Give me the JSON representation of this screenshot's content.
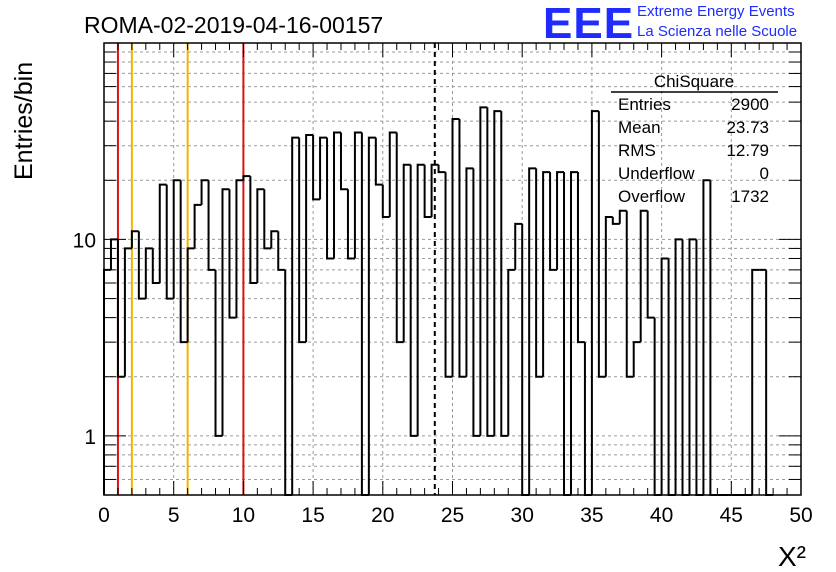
{
  "header": {
    "run_title": "ROMA-02-2019-04-16-00157",
    "logo_text": "EEE",
    "logo_line1": "Extreme Energy Events",
    "logo_line2": "La Scienza nelle Scuole"
  },
  "stats_box": {
    "title": "ChiSquare",
    "rows": [
      {
        "label": "Entries",
        "value": "2900"
      },
      {
        "label": "Mean",
        "value": "23.73"
      },
      {
        "label": "RMS",
        "value": "12.79"
      },
      {
        "label": "Underflow",
        "value": "0"
      },
      {
        "label": "Overflow",
        "value": "1732"
      }
    ]
  },
  "colors": {
    "histogram": "#000000",
    "red_line": "#dd1111",
    "yellow_line": "#f0b400",
    "grid": "#9a9a9a",
    "logo": "#1f2bff"
  },
  "chart_data": {
    "type": "histogram",
    "xlabel": "X²",
    "ylabel": "Entries/bin",
    "xlim": [
      0,
      50
    ],
    "ylim": [
      0.5,
      100
    ],
    "y_scale": "log",
    "grid": true,
    "bin_width": 0.5,
    "x_ticks": [
      "0",
      "5",
      "10",
      "15",
      "20",
      "25",
      "30",
      "35",
      "40",
      "45",
      "50"
    ],
    "y_ticks": [
      "1",
      "10"
    ],
    "bin_counts": [
      7,
      10,
      2,
      9,
      11,
      5,
      9,
      6,
      19,
      5,
      20,
      3,
      9,
      15,
      20,
      7,
      1,
      18,
      4,
      20,
      21,
      6,
      18,
      9,
      11,
      7,
      0,
      33,
      3,
      34,
      16,
      33,
      8,
      35,
      18,
      8,
      35,
      0,
      33,
      19,
      13,
      35,
      3,
      24,
      1,
      24,
      13,
      24,
      22,
      2,
      41,
      2,
      23,
      1,
      47,
      1,
      45,
      1,
      7,
      12,
      0,
      23,
      2,
      22,
      7,
      22,
      0,
      22,
      3,
      0,
      45,
      2,
      13,
      12,
      14,
      2,
      3,
      14,
      4,
      0,
      8,
      0,
      10,
      0,
      10,
      0,
      20,
      0,
      0,
      0,
      0,
      0,
      0,
      7,
      7,
      0
    ],
    "vertical_lines": [
      {
        "x": 1,
        "color": "red"
      },
      {
        "x": 2,
        "color": "yellow"
      },
      {
        "x": 6,
        "color": "yellow"
      },
      {
        "x": 10,
        "color": "red"
      },
      {
        "x": 23.73,
        "color": "black",
        "style": "dashed"
      }
    ]
  }
}
